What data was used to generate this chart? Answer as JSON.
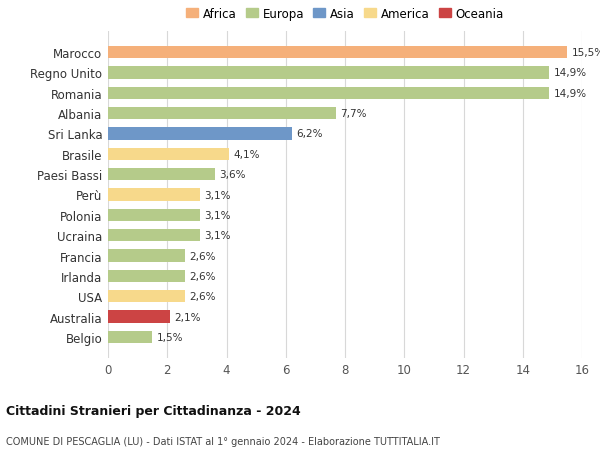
{
  "countries": [
    "Marocco",
    "Regno Unito",
    "Romania",
    "Albania",
    "Sri Lanka",
    "Brasile",
    "Paesi Bassi",
    "Perù",
    "Polonia",
    "Ucraina",
    "Francia",
    "Irlanda",
    "USA",
    "Australia",
    "Belgio"
  ],
  "values": [
    15.5,
    14.9,
    14.9,
    7.7,
    6.2,
    4.1,
    3.6,
    3.1,
    3.1,
    3.1,
    2.6,
    2.6,
    2.6,
    2.1,
    1.5
  ],
  "labels": [
    "15,5%",
    "14,9%",
    "14,9%",
    "7,7%",
    "6,2%",
    "4,1%",
    "3,6%",
    "3,1%",
    "3,1%",
    "3,1%",
    "2,6%",
    "2,6%",
    "2,6%",
    "2,1%",
    "1,5%"
  ],
  "colors": [
    "#f5b07a",
    "#b5cb8a",
    "#b5cb8a",
    "#b5cb8a",
    "#6e97c8",
    "#f7d98b",
    "#b5cb8a",
    "#f7d98b",
    "#b5cb8a",
    "#b5cb8a",
    "#b5cb8a",
    "#b5cb8a",
    "#f7d98b",
    "#cc4444",
    "#b5cb8a"
  ],
  "legend_labels": [
    "Africa",
    "Europa",
    "Asia",
    "America",
    "Oceania"
  ],
  "legend_colors": [
    "#f5b07a",
    "#b5cb8a",
    "#6e97c8",
    "#f7d98b",
    "#cc4444"
  ],
  "title1": "Cittadini Stranieri per Cittadinanza - 2024",
  "title2": "COMUNE DI PESCAGLIA (LU) - Dati ISTAT al 1° gennaio 2024 - Elaborazione TUTTITALIA.IT",
  "xlim": [
    0,
    16
  ],
  "xticks": [
    0,
    2,
    4,
    6,
    8,
    10,
    12,
    14,
    16
  ],
  "background_color": "#ffffff",
  "grid_color": "#d8d8d8"
}
